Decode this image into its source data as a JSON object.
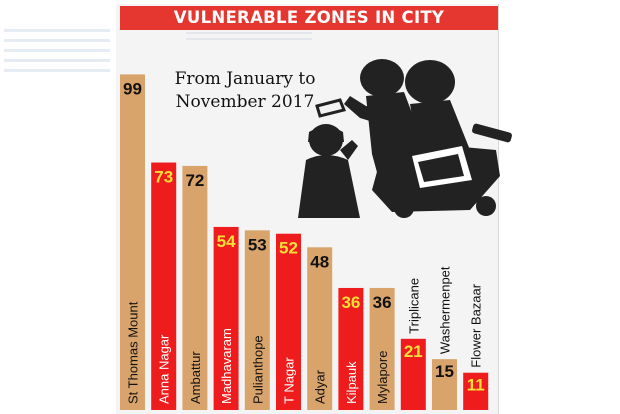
{
  "chart_data": {
    "type": "bar",
    "title": "VULNERABLE ZONES IN CITY",
    "subtitle": "From January to November 2017",
    "xlabel": "",
    "ylabel": "",
    "ylim": [
      0,
      100
    ],
    "grid": false,
    "legend": "none",
    "categories": [
      "St Thomas Mount",
      "Anna Nagar",
      "Ambattur",
      "Madhavaram",
      "Pulianthope",
      "T Nagar",
      "Adyar",
      "Kilpauk",
      "Mylapore",
      "Triplicane",
      "Washermenpet",
      "Flower Bazaar"
    ],
    "values": [
      99,
      73,
      72,
      54,
      53,
      52,
      48,
      36,
      36,
      21,
      15,
      11
    ],
    "bar_colors": [
      "#d9a46c",
      "#ee1c1c",
      "#d9a46c",
      "#ee1c1c",
      "#d9a46c",
      "#ee1c1c",
      "#d9a46c",
      "#ee1c1c",
      "#d9a46c",
      "#ee1c1c",
      "#d9a46c",
      "#ee1c1c"
    ],
    "label_colors": [
      "#111111",
      "#f6e03a",
      "#111111",
      "#f6e03a",
      "#111111",
      "#f6e03a",
      "#111111",
      "#f6e03a",
      "#111111",
      "#f6e03a",
      "#111111",
      "#f6e03a"
    ]
  },
  "colors": {
    "banner": "#e53630",
    "tan": "#d9a46c",
    "red": "#ee1c1c",
    "highlight_text": "#f6e03a",
    "illustration": "#222222"
  },
  "illustration": "chain-snatching-silhouette"
}
